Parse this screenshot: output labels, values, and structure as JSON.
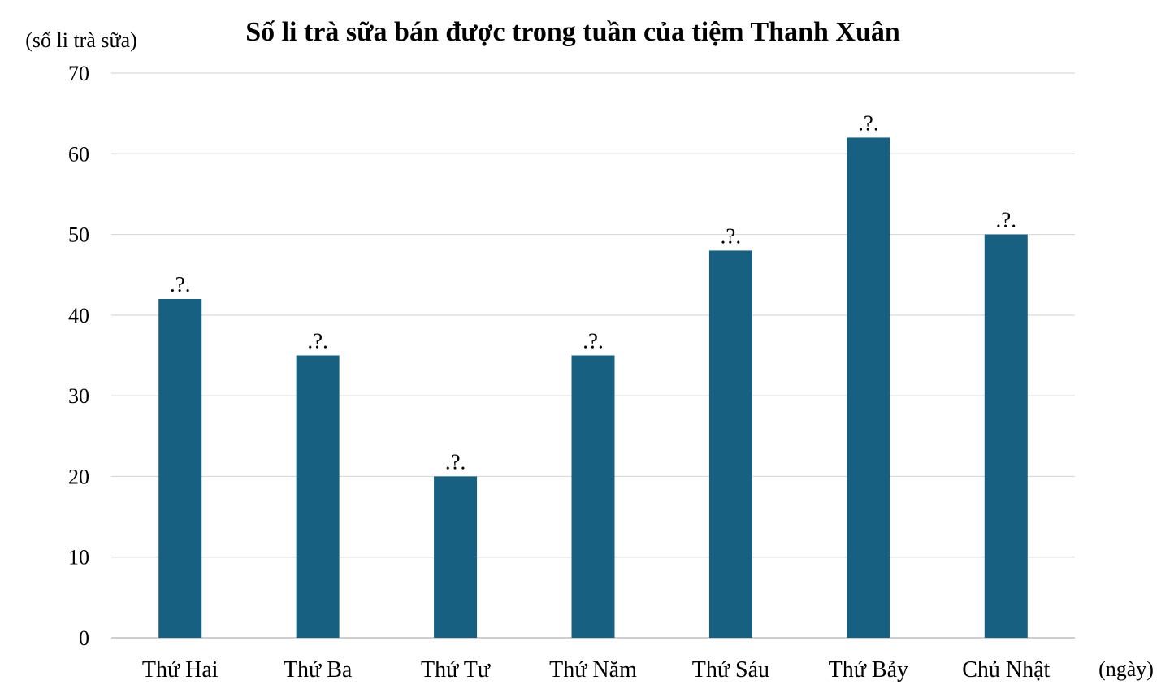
{
  "chart_data": {
    "type": "bar",
    "title": "Số li trà sữa bán được trong tuần của tiệm Thanh Xuân",
    "ylabel": "(số li trà sữa)",
    "xlabel": "(ngày)",
    "categories": [
      "Thứ Hai",
      "Thứ Ba",
      "Thứ Tư",
      "Thứ Năm",
      "Thứ Sáu",
      "Thứ Bảy",
      "Chủ Nhật"
    ],
    "values": [
      42,
      35,
      20,
      35,
      48,
      62,
      50
    ],
    "data_labels": [
      ".?.",
      ".?.",
      ".?.",
      ".?.",
      ".?.",
      ".?.",
      ".?."
    ],
    "ylim": [
      0,
      70
    ],
    "yticks": [
      0,
      10,
      20,
      30,
      40,
      50,
      60,
      70
    ],
    "grid": true,
    "legend": "none",
    "colors": {
      "bar": "#176082",
      "grid": "#d9d9d9",
      "axis": "#bfbfbf",
      "text": "#000000"
    }
  }
}
